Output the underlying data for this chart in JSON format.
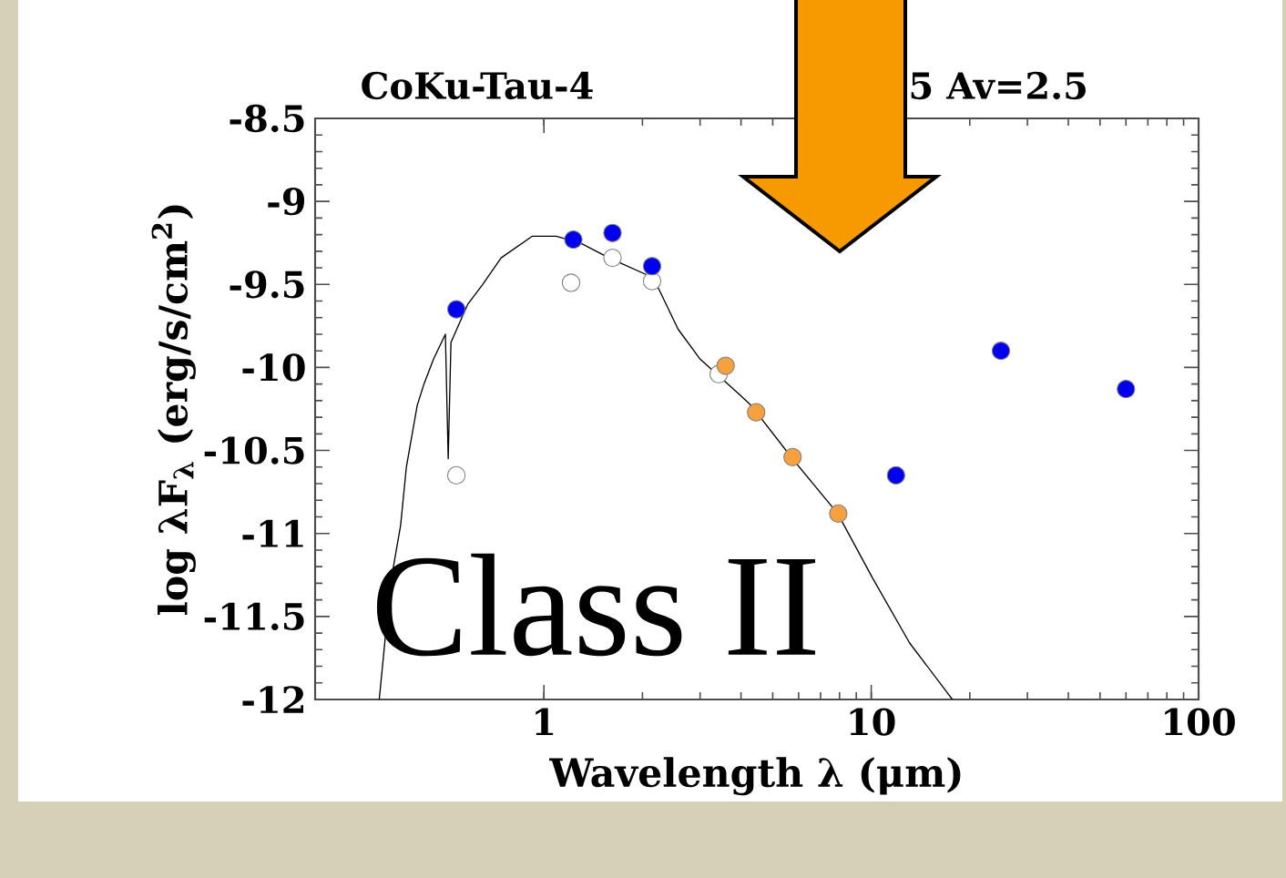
{
  "chart_data": {
    "type": "scatter",
    "title": "CoKu-Tau-4",
    "xlabel": "Wavelength λ (μm)",
    "ylabel": "log λF$_{λ}$ (erg/s/cm$^{2}$)",
    "annotations": [
      "5  Av=2.5",
      "Class II"
    ],
    "log": "x",
    "xlim": [
      0.2,
      100
    ],
    "xticks": [
      1,
      10,
      100
    ],
    "ylim": [
      -12,
      -8.5
    ],
    "yticks": [
      -12,
      -11.5,
      -11,
      -10.5,
      -10,
      -9.5,
      -9,
      -8.5
    ],
    "grid": false,
    "series": [
      {
        "type": "line",
        "color": "#000000",
        "marker": "none",
        "x": [
          0.314,
          0.34,
          0.365,
          0.38,
          0.41,
          0.43,
          0.46,
          0.5,
          0.51,
          0.52,
          0.585,
          0.65,
          0.74,
          0.92,
          1.09,
          1.29,
          1.58,
          2.16,
          2.57,
          3.0,
          3.94,
          4.3,
          5.8,
          7.9,
          10.1,
          13.1,
          17.7
        ],
        "values": [
          -12.0,
          -11.3,
          -10.95,
          -10.6,
          -10.23,
          -10.1,
          -9.95,
          -9.8,
          -10.55,
          -9.85,
          -9.62,
          -9.5,
          -9.34,
          -9.21,
          -9.21,
          -9.25,
          -9.34,
          -9.46,
          -9.77,
          -9.95,
          -10.16,
          -10.23,
          -10.56,
          -10.88,
          -11.27,
          -11.66,
          -12.0
        ]
      },
      {
        "color": "#ffffff",
        "marker": "circle",
        "x": [
          0.54,
          1.21,
          1.62,
          2.14,
          3.42
        ],
        "values": [
          -10.65,
          -9.49,
          -9.34,
          -9.48,
          -10.04
        ]
      },
      {
        "color": "#0000ee",
        "marker": "circle",
        "x": [
          0.54,
          1.23,
          1.62,
          2.14,
          11.9,
          24.9,
          60
        ],
        "values": [
          -9.65,
          -9.23,
          -9.19,
          -9.39,
          -10.65,
          -9.9,
          -10.13
        ]
      },
      {
        "color": "#f7a040",
        "marker": "circle",
        "x": [
          3.59,
          4.45,
          5.75,
          7.93
        ],
        "values": [
          -9.99,
          -10.27,
          -10.54,
          -10.88
        ]
      }
    ]
  }
}
